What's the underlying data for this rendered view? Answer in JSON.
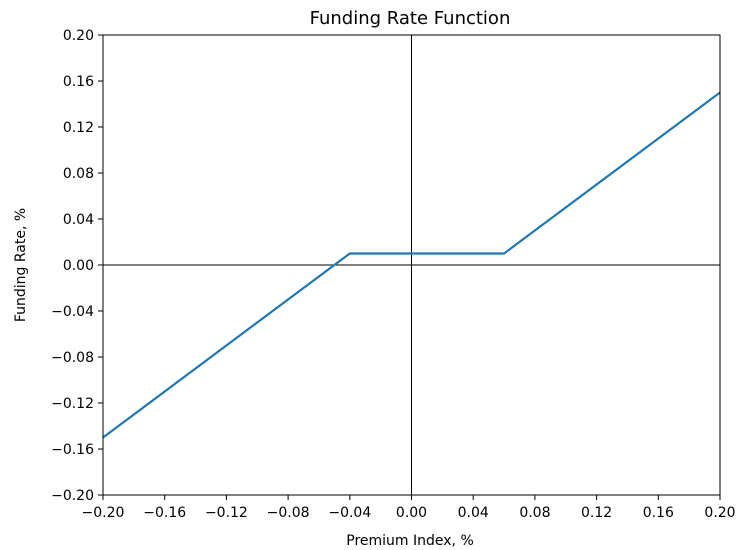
{
  "chart_data": {
    "type": "line",
    "title": "Funding Rate Function",
    "xlabel": "Premium Index, %",
    "ylabel": "Funding Rate, %",
    "xlim": [
      -0.2,
      0.2
    ],
    "ylim": [
      -0.2,
      0.2
    ],
    "xticks": [
      -0.2,
      -0.16,
      -0.12,
      -0.08,
      -0.04,
      0.0,
      0.04,
      0.08,
      0.12,
      0.16,
      0.2
    ],
    "yticks": [
      -0.2,
      -0.16,
      -0.12,
      -0.08,
      -0.04,
      0.0,
      0.04,
      0.08,
      0.12,
      0.16,
      0.2
    ],
    "xtick_labels": [
      "−0.20",
      "−0.16",
      "−0.12",
      "−0.08",
      "−0.04",
      "0.00",
      "0.04",
      "0.08",
      "0.12",
      "0.16",
      "0.20"
    ],
    "ytick_labels": [
      "−0.20",
      "−0.16",
      "−0.12",
      "−0.08",
      "−0.04",
      "0.00",
      "0.04",
      "0.08",
      "0.12",
      "0.16",
      "0.20"
    ],
    "grid": false,
    "reference_lines": {
      "x": 0,
      "y": 0,
      "color": "#000000"
    },
    "series": [
      {
        "color": "#1f77b4",
        "x": [
          -0.2,
          -0.04,
          0.06,
          0.2
        ],
        "y": [
          -0.15,
          0.01,
          0.01,
          0.15
        ]
      }
    ]
  }
}
